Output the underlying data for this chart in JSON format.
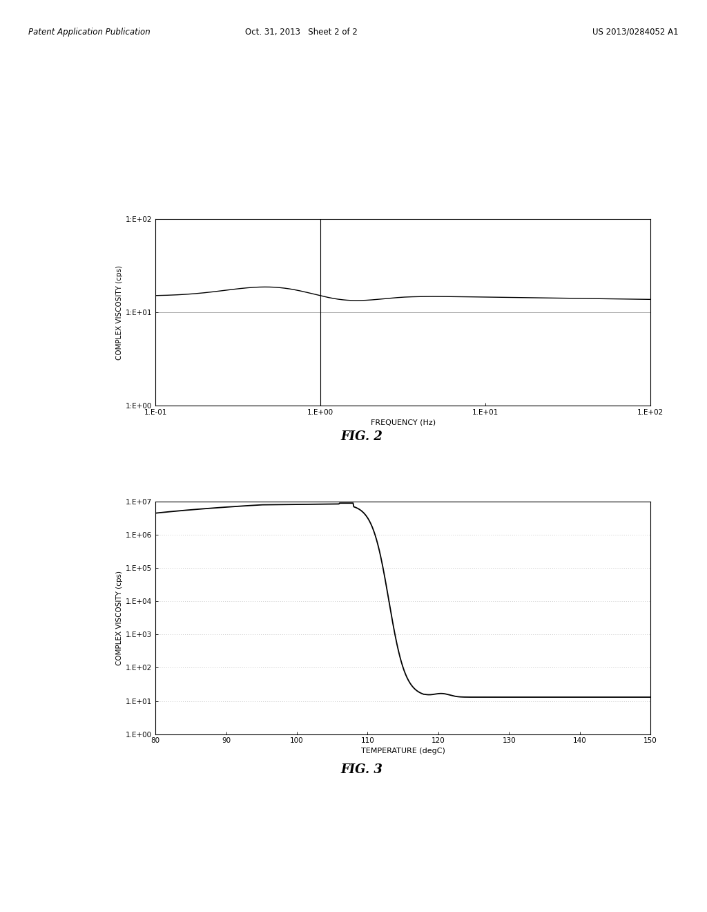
{
  "fig2": {
    "title": "FIG. 2",
    "xlabel": "FREQUENCY (Hz)",
    "ylabel": "COMPLEX VISCOSITY (cps)",
    "xtick_labels": [
      "1.E-01",
      "1.E+00",
      "1.E+01",
      "1.E+02"
    ],
    "ytick_labels": [
      "1:E+00",
      "1:E+01",
      "1:E+02"
    ],
    "line_color": "#000000",
    "grid_color": "#999999",
    "background": "#ffffff"
  },
  "fig3": {
    "title": "FIG. 3",
    "xlabel": "TEMPERATURE (degC)",
    "ylabel": "COMPLEX VISCOSITY (cps)",
    "xticks": [
      80,
      90,
      100,
      110,
      120,
      130,
      140,
      150
    ],
    "ytick_labels": [
      "1.E+00",
      "1.E+01",
      "1.E+02",
      "1.E+03",
      "1.E+04",
      "1.E+05",
      "1.E+06",
      "1.E+07"
    ],
    "line_color": "#000000",
    "grid_color": "#aaaaaa",
    "background": "#ffffff"
  },
  "page": {
    "header_left": "Patent Application Publication",
    "header_center": "Oct. 31, 2013   Sheet 2 of 2",
    "header_right": "US 2013/0284052 A1",
    "background": "#ffffff",
    "text_color": "#000000"
  }
}
